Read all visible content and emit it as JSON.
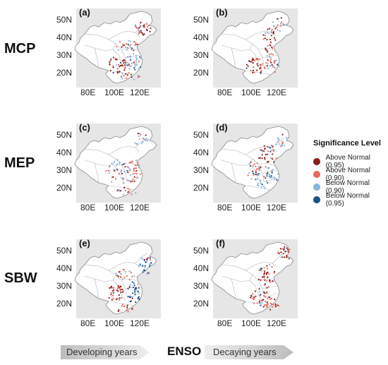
{
  "rows": [
    {
      "label": "MCP"
    },
    {
      "label": "MEP"
    },
    {
      "label": "SBW"
    }
  ],
  "panels": [
    {
      "id": "(a)",
      "pattern": "a"
    },
    {
      "id": "(b)",
      "pattern": "b"
    },
    {
      "id": "(c)",
      "pattern": "c"
    },
    {
      "id": "(d)",
      "pattern": "d"
    },
    {
      "id": "(e)",
      "pattern": "e"
    },
    {
      "id": "(f)",
      "pattern": "f"
    }
  ],
  "lat_ticks": [
    "50N",
    "40N",
    "30N",
    "20N"
  ],
  "lon_ticks": [
    "80E",
    "100E",
    "120E"
  ],
  "legend": {
    "title": "Significance Level",
    "items": [
      {
        "label": "Above Normal (0.95)",
        "color": "#8b1a1a"
      },
      {
        "label": "Above Normal (0.90)",
        "color": "#e8685a"
      },
      {
        "label": "Below Normal (0.90)",
        "color": "#86b4dc"
      },
      {
        "label": "Below Normal (0.95)",
        "color": "#1f4e8c"
      }
    ]
  },
  "bottom": {
    "developing": "Developing years",
    "enso": "ENSO",
    "decaying": "Decaying years"
  }
}
